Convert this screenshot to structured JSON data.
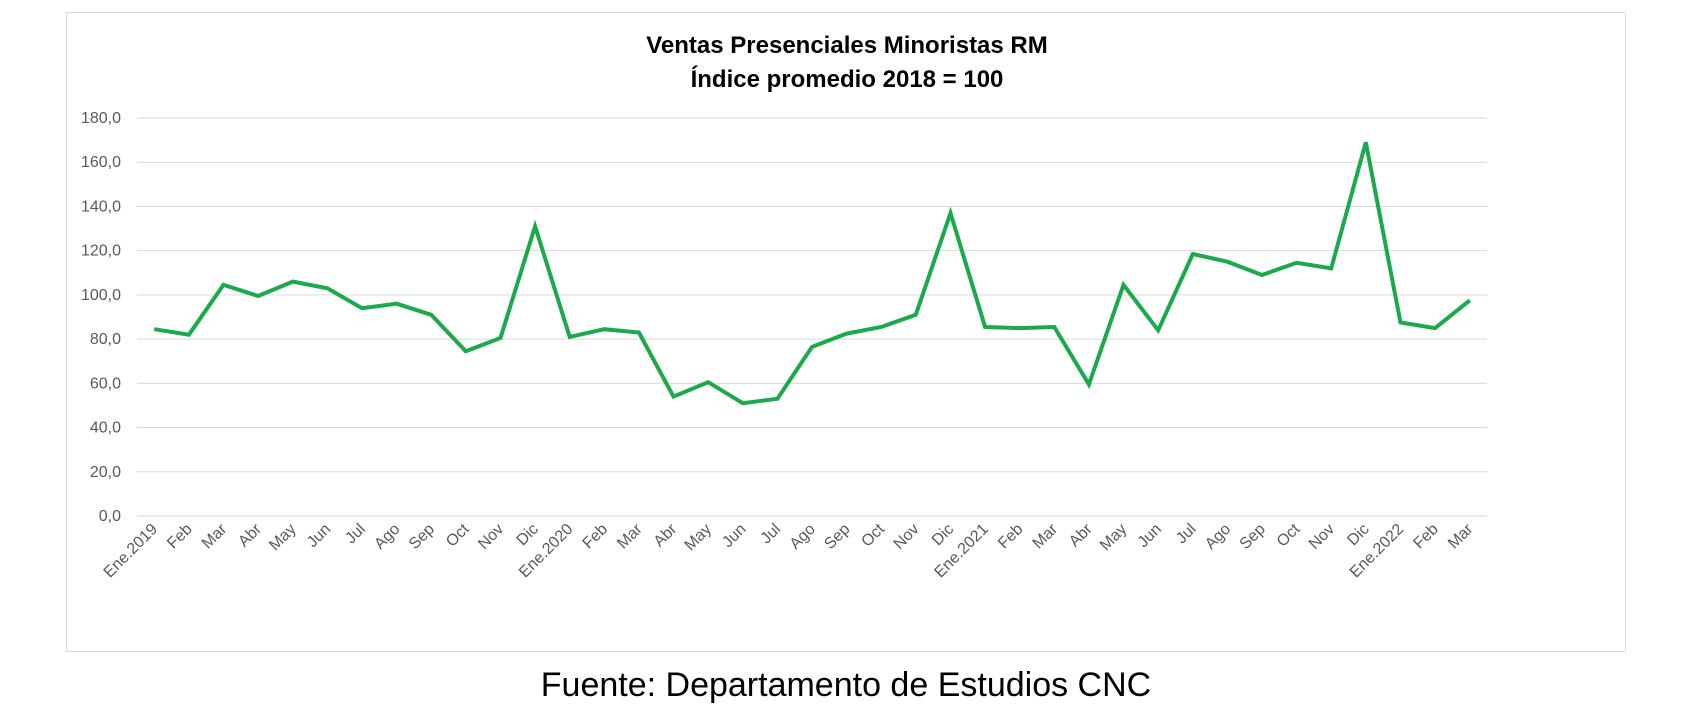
{
  "chart_data": {
    "type": "line",
    "title": "Ventas Presenciales Minoristas RM",
    "subtitle": "Índice promedio 2018  = 100",
    "xlabel": "",
    "ylabel": "",
    "ylim": [
      0,
      180
    ],
    "yticks": [
      "0,0",
      "20,0",
      "40,0",
      "60,0",
      "80,0",
      "100,0",
      "120,0",
      "140,0",
      "160,0",
      "180,0"
    ],
    "grid": true,
    "legend": "none",
    "line_color": "#1aaa4b",
    "categories": [
      "Ene.2019",
      "Feb",
      "Mar",
      "Abr",
      "May",
      "Jun",
      "Jul",
      "Ago",
      "Sep",
      "Oct",
      "Nov",
      "Dic",
      "Ene.2020",
      "Feb",
      "Mar",
      "Abr",
      "May",
      "Jun",
      "Jul",
      "Ago",
      "Sep",
      "Oct",
      "Nov",
      "Dic",
      "Ene.2021",
      "Feb",
      "Mar",
      "Abr",
      "May",
      "Jun",
      "Jul",
      "Ago",
      "Sep",
      "Oct",
      "Nov",
      "Dic",
      "Ene.2022",
      "Feb",
      "Mar"
    ],
    "series": [
      {
        "values": [
          84.5,
          82.0,
          104.5,
          99.5,
          106.0,
          103.0,
          94.0,
          96.0,
          91.0,
          74.5,
          80.5,
          131.0,
          81.0,
          84.5,
          83.0,
          54.0,
          60.5,
          51.0,
          53.0,
          76.5,
          82.5,
          85.5,
          91.0,
          137.0,
          85.5,
          85.0,
          85.5,
          59.5,
          104.5,
          84.0,
          118.5,
          115.0,
          109.0,
          114.5,
          112.0,
          169.0,
          87.5,
          85.0,
          97.5
        ]
      }
    ]
  },
  "footer": {
    "source": "Fuente: Departamento de Estudios CNC"
  }
}
